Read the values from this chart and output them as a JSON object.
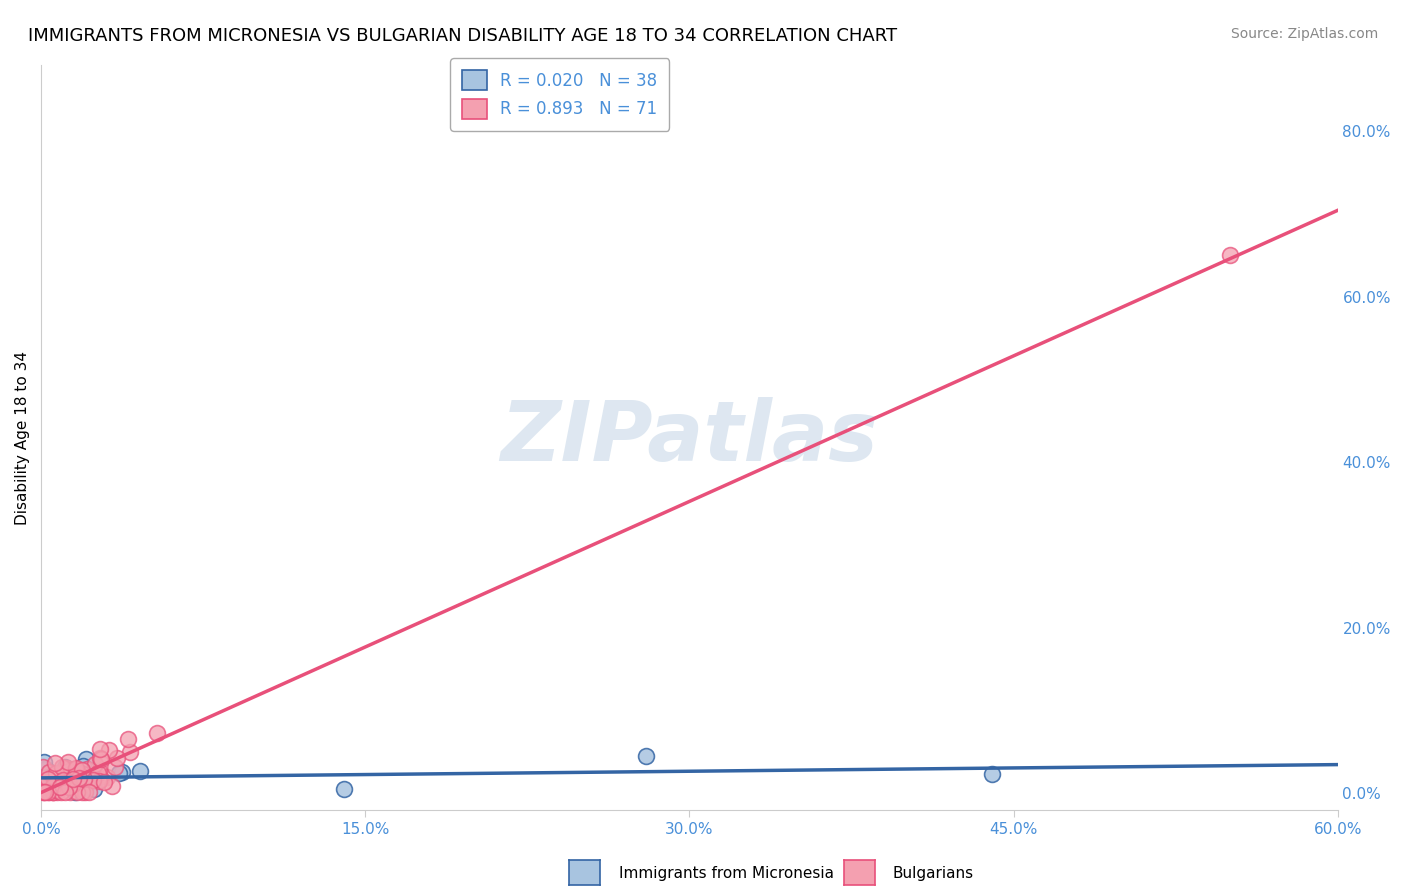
{
  "title": "IMMIGRANTS FROM MICRONESIA VS BULGARIAN DISABILITY AGE 18 TO 34 CORRELATION CHART",
  "source": "Source: ZipAtlas.com",
  "ylabel": "Disability Age 18 to 34",
  "xlim": [
    0.0,
    0.6
  ],
  "ylim": [
    -0.02,
    0.88
  ],
  "xticks": [
    0.0,
    0.15,
    0.3,
    0.45,
    0.6
  ],
  "xtick_labels": [
    "0.0%",
    "15.0%",
    "30.0%",
    "45.0%",
    "60.0%"
  ],
  "yticks_right": [
    0.0,
    0.2,
    0.4,
    0.6,
    0.8
  ],
  "ytick_labels_right": [
    "0.0%",
    "20.0%",
    "40.0%",
    "60.0%",
    "80.0%"
  ],
  "legend_blue_label": "R = 0.020   N = 38",
  "legend_pink_label": "R = 0.893   N = 71",
  "series_blue": {
    "name": "Immigrants from Micronesia",
    "color": "#a8c4e0",
    "line_color": "#3465a4",
    "R": 0.02,
    "N": 38
  },
  "series_pink": {
    "name": "Bulgarians",
    "color": "#f4a0b0",
    "line_color": "#e8507a",
    "R": 0.893,
    "N": 71
  },
  "watermark": "ZIPatlas",
  "watermark_color": "#c8d8e8",
  "background_color": "#ffffff",
  "grid_color": "#d0d0d0",
  "title_fontsize": 13,
  "axis_label_color": "#4a90d9",
  "tick_label_color": "#4a90d9"
}
